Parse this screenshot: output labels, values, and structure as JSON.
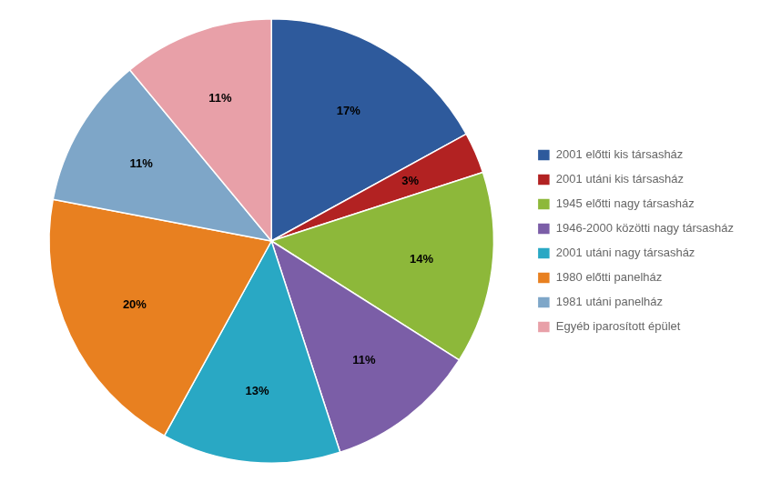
{
  "chart_data": {
    "type": "pie",
    "categories": [
      "2001 előtti kis társasház",
      "2001 utáni kis társasház",
      "1945 előtti nagy társasház",
      "1946-2000 közötti nagy társasház",
      "2001 utáni nagy társasház",
      "1980 előtti panelház",
      "1981 utáni panelház",
      "Egyéb iparosított épület"
    ],
    "values": [
      17,
      3,
      14,
      11,
      13,
      20,
      11,
      11
    ],
    "value_labels": [
      "17%",
      "3%",
      "14%",
      "11%",
      "13%",
      "20%",
      "11%",
      "11%"
    ],
    "colors": [
      "#2E5A9C",
      "#B22222",
      "#8DB83A",
      "#7B5EA7",
      "#29A8C4",
      "#E88020",
      "#7EA6C8",
      "#E8A0A8"
    ],
    "data_labels": true,
    "legend": "right"
  }
}
